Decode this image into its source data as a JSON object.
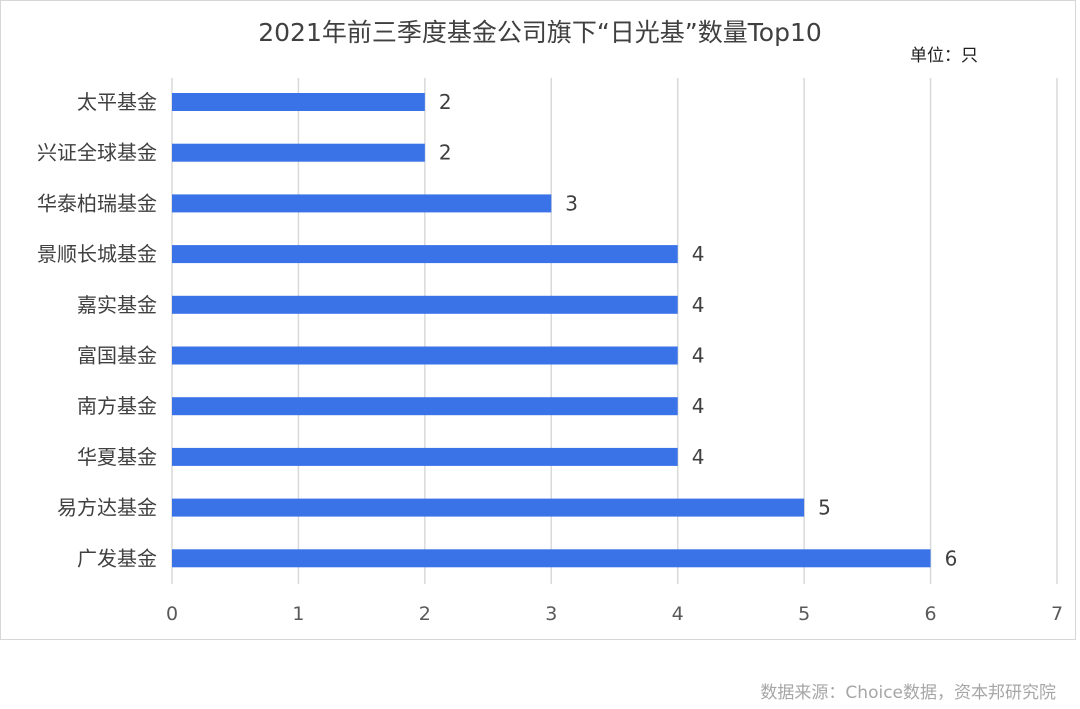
{
  "chart_data": {
    "type": "bar",
    "orientation": "horizontal",
    "title": "2021年前三季度基金公司旗下“日光基”数量Top10",
    "unit_label": "单位：只",
    "categories": [
      "太平基金",
      "兴证全球基金",
      "华泰柏瑞基金",
      "景顺长城基金",
      "嘉实基金",
      "富国基金",
      "南方基金",
      "华夏基金",
      "易方达基金",
      "广发基金"
    ],
    "values": [
      2,
      2,
      3,
      4,
      4,
      4,
      4,
      4,
      5,
      6
    ],
    "xlim": [
      0,
      7
    ],
    "xticks": [
      "0",
      "1",
      "2",
      "3",
      "4",
      "5",
      "6",
      "7"
    ],
    "grid": "vertical",
    "bar_color": "#3a73e8",
    "data_labels": true
  },
  "source": "数据来源：Choice数据，资本邦研究院"
}
